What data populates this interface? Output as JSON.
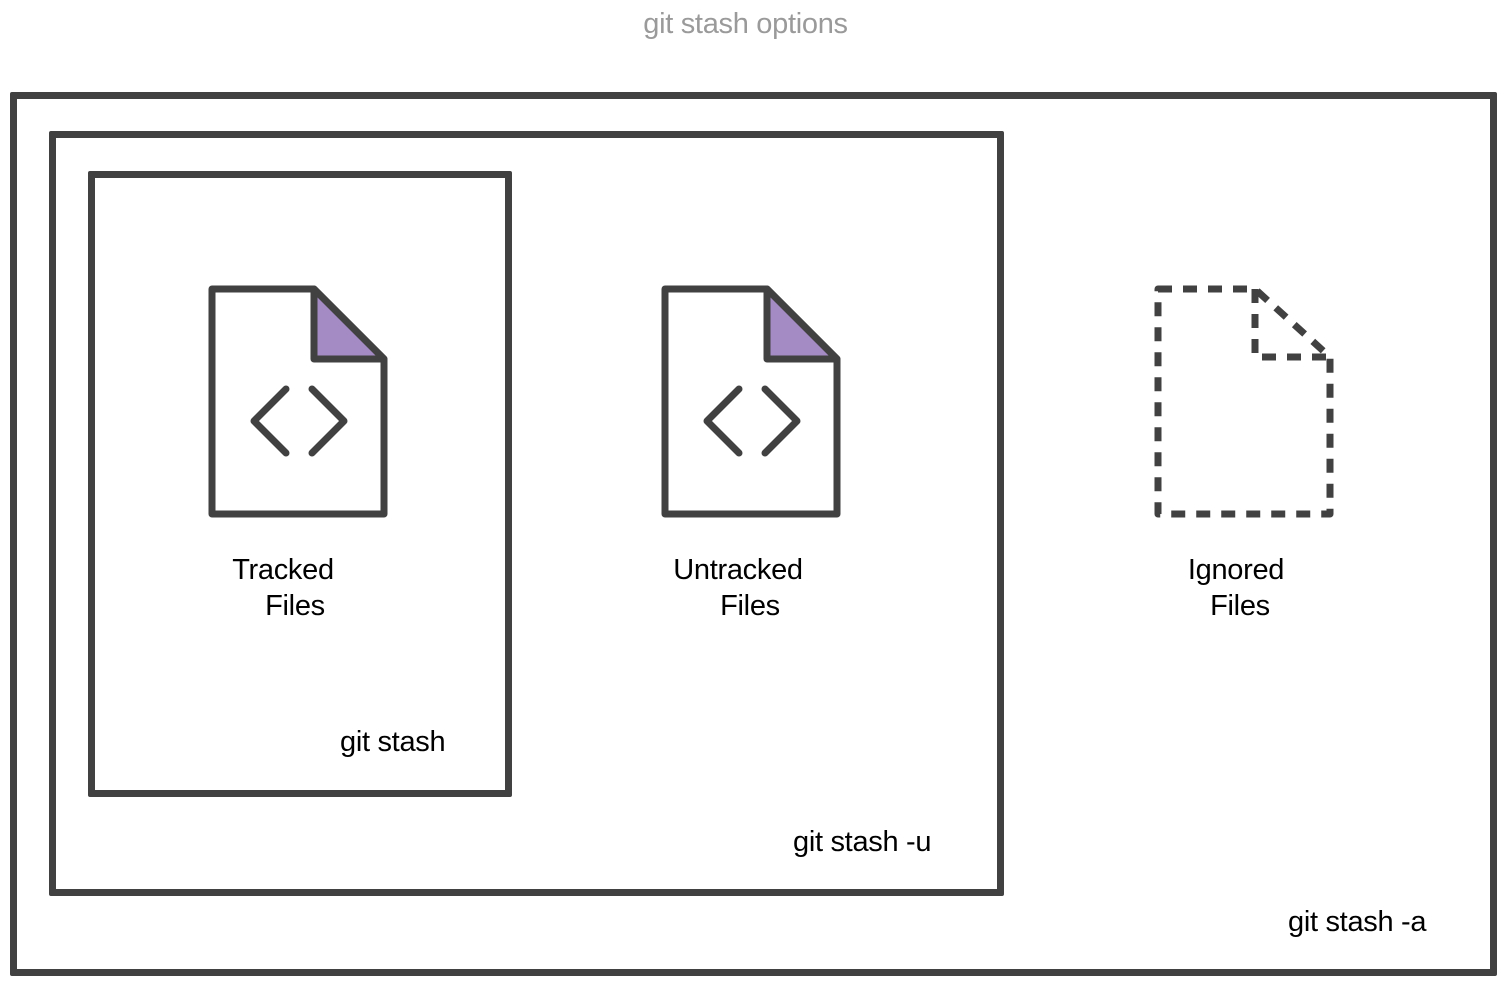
{
  "diagram": {
    "title": "git stash options",
    "commands": {
      "stash": "git stash",
      "stash_u": "git stash -u",
      "stash_a": "git stash -a"
    },
    "files": [
      {
        "line1": "Tracked",
        "line2": "Files",
        "icon": "code-file-icon",
        "style": "solid"
      },
      {
        "line1": "Untracked",
        "line2": "Files",
        "icon": "code-file-icon",
        "style": "solid"
      },
      {
        "line1": "Ignored",
        "line2": "Files",
        "icon": "dashed-file-icon",
        "style": "dashed"
      }
    ],
    "colors": {
      "stroke": "#414141",
      "fold_fill": "#a58bc4",
      "title": "#9a9a9a"
    }
  }
}
